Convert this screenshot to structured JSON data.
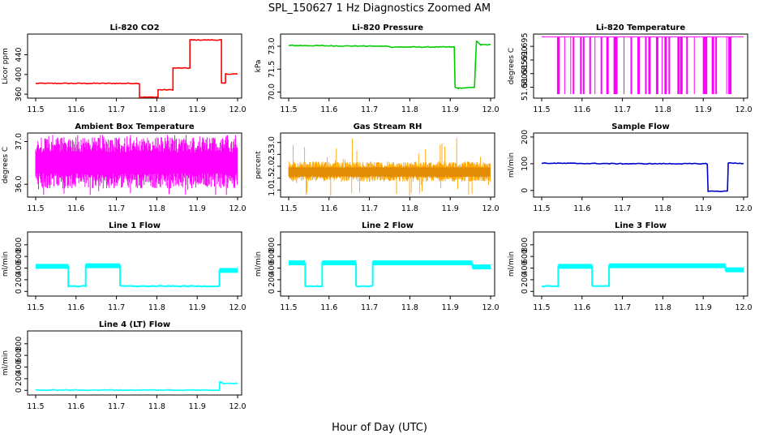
{
  "figure": {
    "title": "SPL_150627  1 Hz Diagnostics Zoomed AM",
    "xlabel": "Hour of Day (UTC)"
  },
  "chart_data": [
    {
      "type": "line",
      "title": "Li-820 CO2",
      "ylabel": "Licor ppm",
      "color": "#ff0000",
      "xlim": [
        11.48,
        12.01
      ],
      "ylim": [
        352,
        482
      ],
      "yticks": [
        360,
        400,
        440
      ],
      "ytick_labels": [
        "360",
        "400",
        "440"
      ],
      "xticks": [
        11.5,
        11.6,
        11.7,
        11.8,
        11.9,
        12.0
      ],
      "xtick_labels": [
        "11.5",
        "11.6",
        "11.7",
        "11.8",
        "11.9",
        "12.0"
      ],
      "x": [
        11.5,
        11.757,
        11.757,
        11.803,
        11.803,
        11.84,
        11.84,
        11.882,
        11.882,
        11.96,
        11.96,
        11.97,
        11.97,
        12.0
      ],
      "y": [
        382,
        382,
        354,
        354,
        369,
        369,
        413,
        413,
        470,
        470,
        382,
        382,
        401,
        401
      ]
    },
    {
      "type": "line",
      "title": "Li-820 Pressure",
      "ylabel": "kPa",
      "color": "#00cc00",
      "xlim": [
        11.48,
        12.01
      ],
      "ylim": [
        69.6,
        73.8
      ],
      "yticks": [
        70.0,
        71.5,
        73.0
      ],
      "ytick_labels": [
        "70.0",
        "71.5",
        "73.0"
      ],
      "xticks": [
        11.5,
        11.6,
        11.7,
        11.8,
        11.9,
        12.0
      ],
      "xtick_labels": [
        "11.5",
        "11.6",
        "11.7",
        "11.8",
        "11.9",
        "12.0"
      ],
      "x": [
        11.5,
        11.75,
        11.751,
        11.91,
        11.912,
        11.92,
        11.96,
        11.965,
        11.975,
        12.0
      ],
      "y": [
        73.05,
        73.0,
        72.95,
        72.95,
        70.3,
        70.25,
        70.3,
        73.35,
        73.1,
        73.1
      ]
    },
    {
      "type": "line",
      "title": "Li-820 Temperature",
      "ylabel": "degrees C",
      "color": "#ff00ff",
      "xlim": [
        11.48,
        12.01
      ],
      "ylim": [
        51.676,
        51.6995
      ],
      "yticks": [
        51.68,
        51.685,
        51.69,
        51.695
      ],
      "ytick_labels": [
        "51.680",
        "51.685",
        "51.690",
        "51.695"
      ],
      "xticks": [
        11.5,
        11.6,
        11.7,
        11.8,
        11.9,
        12.0
      ],
      "xtick_labels": [
        "11.5",
        "11.6",
        "11.7",
        "11.8",
        "11.9",
        "12.0"
      ],
      "baseline": 51.6985,
      "dip_value": 51.6775,
      "dip_x": [
        11.538,
        11.541,
        11.556,
        11.571,
        11.577,
        11.595,
        11.602,
        11.618,
        11.631,
        11.646,
        11.66,
        11.678,
        11.684,
        11.703,
        11.72,
        11.737,
        11.756,
        11.764,
        11.783,
        11.797,
        11.804,
        11.814,
        11.836,
        11.843,
        11.858,
        11.877,
        11.899,
        11.904,
        11.921,
        11.93,
        11.957,
        11.962
      ]
    },
    {
      "type": "line",
      "title": "Ambient Box Temperature",
      "ylabel": "degrees C",
      "color": "#ff00ff",
      "xlim": [
        11.48,
        12.01
      ],
      "ylim": [
        35.7,
        37.2
      ],
      "yticks": [
        36.0,
        37.0
      ],
      "ytick_labels": [
        "36.0",
        "37.0"
      ],
      "xticks": [
        11.5,
        11.6,
        11.7,
        11.8,
        11.9,
        12.0
      ],
      "xtick_labels": [
        "11.5",
        "11.6",
        "11.7",
        "11.8",
        "11.9",
        "12.0"
      ],
      "band": [
        35.9,
        37.1
      ]
    },
    {
      "type": "line",
      "title": "Gas Stream RH",
      "ylabel": "percent",
      "color": "#ffa500",
      "xlim": [
        11.48,
        12.01
      ],
      "ylim": [
        0.7,
        3.4
      ],
      "yticks": [
        1.0,
        1.5,
        2.0,
        2.5,
        3.0
      ],
      "ytick_labels": [
        "1.0",
        "1.5",
        "2.0",
        "2.5",
        "3.0"
      ],
      "xticks": [
        11.5,
        11.6,
        11.7,
        11.8,
        11.9,
        12.0
      ],
      "xtick_labels": [
        "11.5",
        "11.6",
        "11.7",
        "11.8",
        "11.9",
        "12.0"
      ],
      "band": [
        1.35,
        2.2
      ]
    },
    {
      "type": "line",
      "title": "Sample Flow",
      "ylabel": "ml/min",
      "color": "#0000cc",
      "xlim": [
        11.48,
        12.01
      ],
      "ylim": [
        -25,
        215
      ],
      "yticks": [
        0,
        100,
        200
      ],
      "ytick_labels": [
        "0",
        "100",
        "200"
      ],
      "xticks": [
        11.5,
        11.6,
        11.7,
        11.8,
        11.9,
        12.0
      ],
      "xtick_labels": [
        "11.5",
        "11.6",
        "11.7",
        "11.8",
        "11.9",
        "12.0"
      ],
      "x": [
        11.5,
        11.7,
        11.91,
        11.912,
        11.96,
        11.962,
        12.0
      ],
      "y": [
        102,
        100,
        100,
        -3,
        -3,
        104,
        100
      ]
    },
    {
      "type": "line",
      "title": "Line 1 Flow",
      "ylabel": "ml/min",
      "color": "#00ffff",
      "xlim": [
        11.48,
        12.01
      ],
      "ylim": [
        -80,
        1020
      ],
      "yticks": [
        0,
        200,
        400,
        600,
        800
      ],
      "ytick_labels": [
        "0",
        "200",
        "400",
        "600",
        "800"
      ],
      "xticks": [
        11.5,
        11.6,
        11.7,
        11.8,
        11.9,
        12.0
      ],
      "xtick_labels": [
        "11.5",
        "11.6",
        "11.7",
        "11.8",
        "11.9",
        "12.0"
      ],
      "x": [
        11.5,
        11.581,
        11.581,
        11.624,
        11.624,
        11.709,
        11.709,
        11.955,
        11.955,
        12.0
      ],
      "y": [
        430,
        430,
        90,
        90,
        440,
        440,
        90,
        90,
        360,
        360
      ]
    },
    {
      "type": "line",
      "title": "Line 2 Flow",
      "ylabel": "ml/min",
      "color": "#00ffff",
      "xlim": [
        11.48,
        12.01
      ],
      "ylim": [
        -80,
        1020
      ],
      "yticks": [
        0,
        200,
        400,
        600,
        800
      ],
      "ytick_labels": [
        "0",
        "200",
        "400",
        "600",
        "800"
      ],
      "xticks": [
        11.5,
        11.6,
        11.7,
        11.8,
        11.9,
        12.0
      ],
      "xtick_labels": [
        "11.5",
        "11.6",
        "11.7",
        "11.8",
        "11.9",
        "12.0"
      ],
      "x": [
        11.5,
        11.541,
        11.541,
        11.583,
        11.583,
        11.667,
        11.667,
        11.708,
        11.708,
        11.955,
        11.955,
        12.0
      ],
      "y": [
        490,
        490,
        90,
        90,
        490,
        490,
        90,
        90,
        490,
        490,
        420,
        420
      ]
    },
    {
      "type": "line",
      "title": "Line 3 Flow",
      "ylabel": "ml/min",
      "color": "#00ffff",
      "xlim": [
        11.48,
        12.01
      ],
      "ylim": [
        -80,
        1020
      ],
      "yticks": [
        0,
        200,
        400,
        600,
        800
      ],
      "ytick_labels": [
        "0",
        "200",
        "400",
        "600",
        "800"
      ],
      "xticks": [
        11.5,
        11.6,
        11.7,
        11.8,
        11.9,
        12.0
      ],
      "xtick_labels": [
        "11.5",
        "11.6",
        "11.7",
        "11.8",
        "11.9",
        "12.0"
      ],
      "x": [
        11.5,
        11.541,
        11.541,
        11.625,
        11.625,
        11.667,
        11.667,
        11.955,
        11.955,
        12.0
      ],
      "y": [
        90,
        90,
        430,
        430,
        90,
        90,
        440,
        440,
        370,
        370
      ]
    },
    {
      "type": "line",
      "title": "Line 4 (LT) Flow",
      "ylabel": "ml/min",
      "color": "#00ffff",
      "xlim": [
        11.48,
        12.01
      ],
      "ylim": [
        -80,
        1020
      ],
      "yticks": [
        0,
        200,
        400,
        600,
        800
      ],
      "ytick_labels": [
        "0",
        "200",
        "400",
        "600",
        "800"
      ],
      "xticks": [
        11.5,
        11.6,
        11.7,
        11.8,
        11.9,
        12.0
      ],
      "xtick_labels": [
        "11.5",
        "11.6",
        "11.7",
        "11.8",
        "11.9",
        "12.0"
      ],
      "x": [
        11.5,
        11.955,
        11.956,
        11.96,
        11.965,
        12.0
      ],
      "y": [
        5,
        5,
        160,
        130,
        120,
        120
      ]
    }
  ]
}
